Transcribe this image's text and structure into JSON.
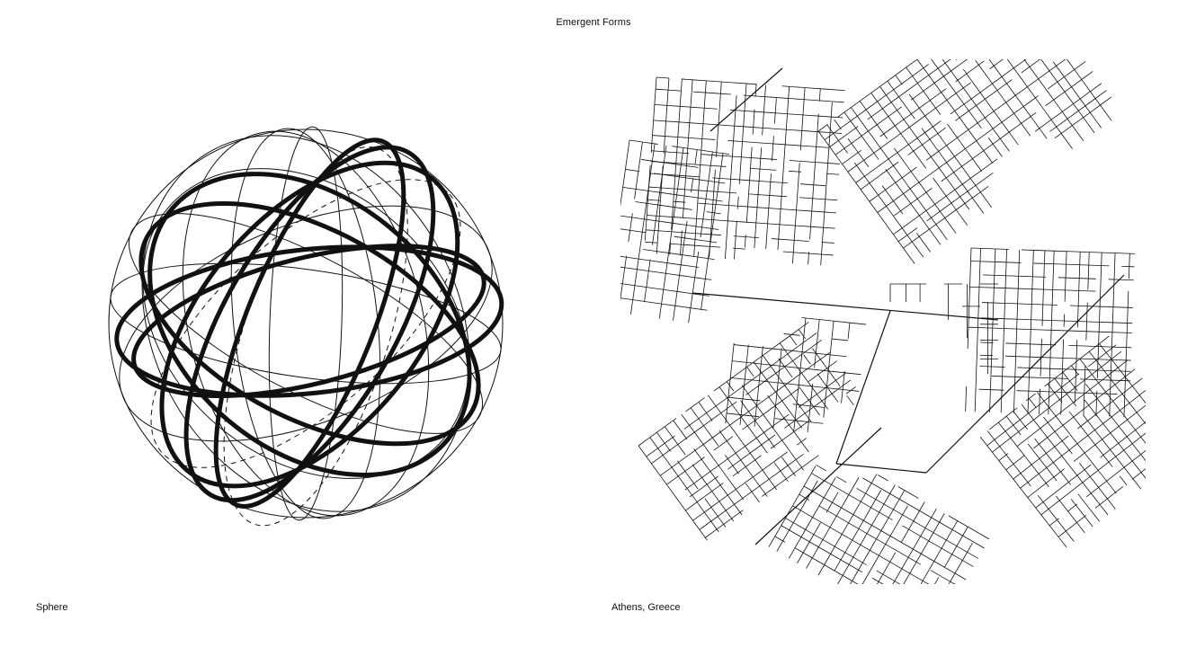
{
  "header": {
    "title": "Emergent Forms"
  },
  "panels": [
    {
      "caption": "Sphere"
    },
    {
      "caption": "Athens, Greece"
    }
  ],
  "colors": {
    "ink": "#111111",
    "background": "#ffffff"
  }
}
